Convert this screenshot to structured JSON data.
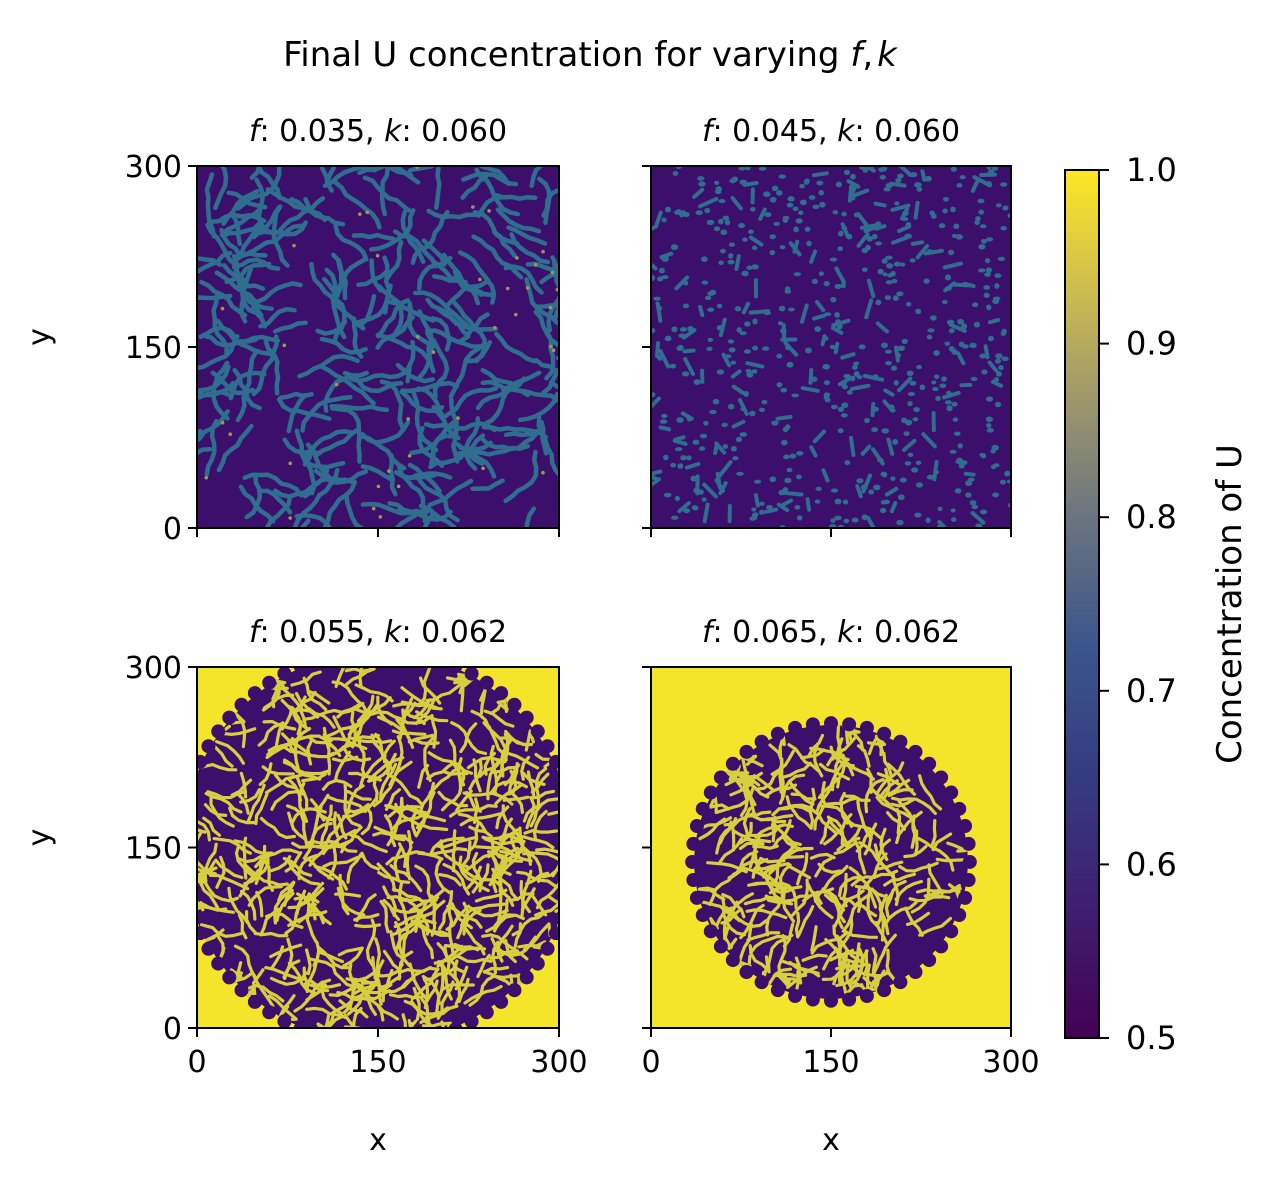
{
  "figure": {
    "title_prefix": "Final U concentration for varying ",
    "title_f": "f",
    "title_sep": ",",
    "title_k": "k"
  },
  "chart_data": [
    {
      "type": "heatmap",
      "f_label": "f",
      "k_label": "k",
      "f": "0.035",
      "k": "0.060",
      "pattern": "labyrinth-stripes",
      "xlabel": "",
      "ylabel": "y",
      "xlim": [
        0,
        300
      ],
      "ylim": [
        0,
        300
      ],
      "xticks": [
        0,
        150,
        300
      ],
      "yticks": [
        0,
        150,
        300
      ],
      "show_xticklabels": false,
      "show_yticklabels": true
    },
    {
      "type": "heatmap",
      "f_label": "f",
      "k_label": "k",
      "f": "0.045",
      "k": "0.060",
      "pattern": "spots",
      "xlabel": "",
      "ylabel": "",
      "xlim": [
        0,
        300
      ],
      "ylim": [
        0,
        300
      ],
      "xticks": [
        0,
        150,
        300
      ],
      "yticks": [
        0,
        150,
        300
      ],
      "show_xticklabels": false,
      "show_yticklabels": false
    },
    {
      "type": "heatmap",
      "f_label": "f",
      "k_label": "k",
      "f": "0.055",
      "k": "0.062",
      "pattern": "labyrinth-disc-large",
      "xlabel": "x",
      "ylabel": "y",
      "xlim": [
        0,
        300
      ],
      "ylim": [
        0,
        300
      ],
      "xticks": [
        0,
        150,
        300
      ],
      "yticks": [
        0,
        150,
        300
      ],
      "show_xticklabels": true,
      "show_yticklabels": true
    },
    {
      "type": "heatmap",
      "f_label": "f",
      "k_label": "k",
      "f": "0.065",
      "k": "0.062",
      "pattern": "labyrinth-disc-small",
      "xlabel": "x",
      "ylabel": "",
      "xlim": [
        0,
        300
      ],
      "ylim": [
        0,
        300
      ],
      "xticks": [
        0,
        150,
        300
      ],
      "yticks": [
        0,
        150,
        300
      ],
      "show_xticklabels": true,
      "show_yticklabels": false
    }
  ],
  "colorbar": {
    "label": "Concentration of U",
    "min": 0.5,
    "max": 1.0,
    "ticks": [
      0.5,
      0.6,
      0.7,
      0.8,
      0.9,
      1.0
    ],
    "tick_labels": [
      "0.5",
      "0.6",
      "0.7",
      "0.8",
      "0.9",
      "1.0"
    ],
    "colormap": "cividis",
    "colors": {
      "low": "#3b0f6b",
      "high": "#f5e52a"
    }
  }
}
